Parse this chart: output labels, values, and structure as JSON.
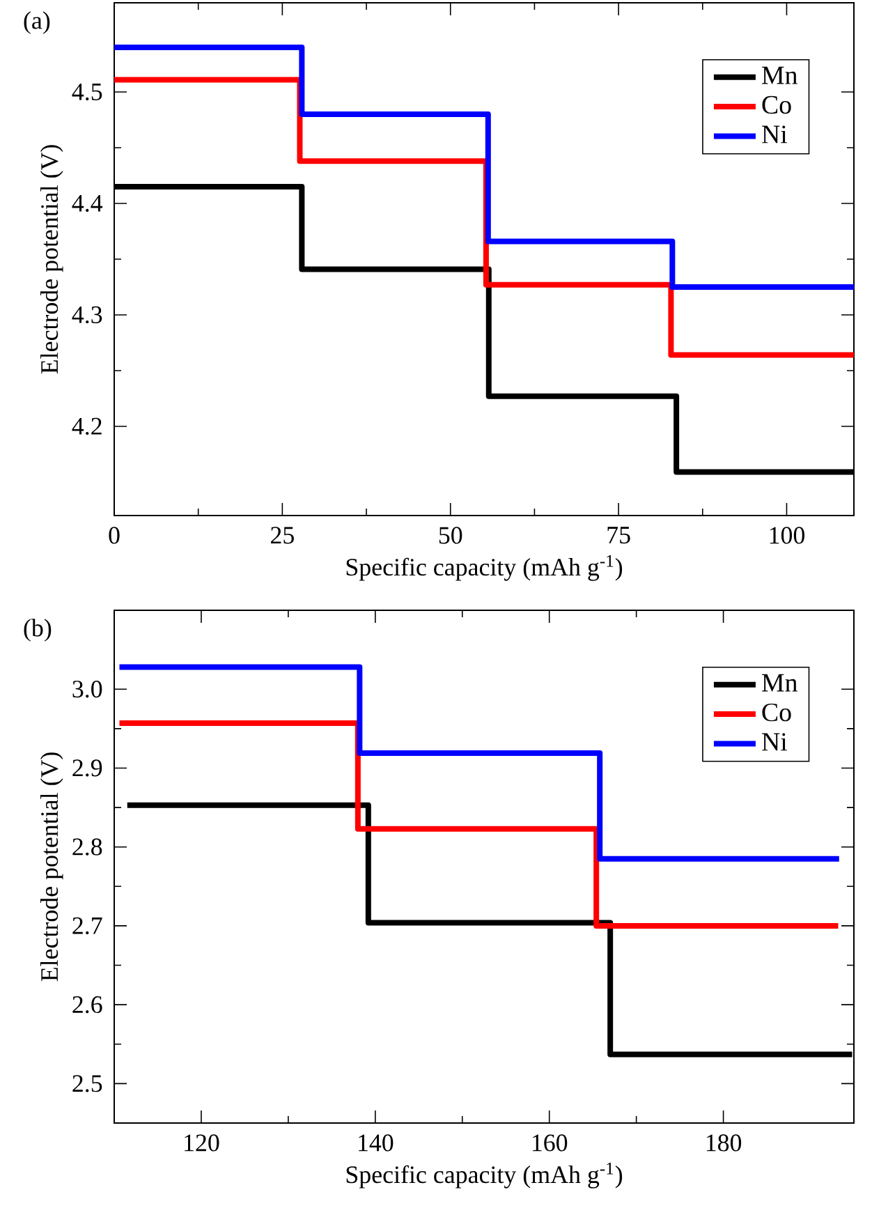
{
  "chart_data": [
    {
      "type": "step",
      "title": "(a)",
      "xlabel": "Specific capacity (mAh g$^{-1}$)",
      "ylabel": "Electrode potential (V)",
      "xlim": [
        0,
        110
      ],
      "ylim": [
        4.12,
        4.58
      ],
      "xticks": [
        0,
        25,
        50,
        75,
        100
      ],
      "yticks": [
        4.2,
        4.3,
        4.4,
        4.5
      ],
      "legend": "top right",
      "series": [
        {
          "name": "Mn",
          "color": "#000000",
          "x": [
            0,
            27.9,
            55.7,
            83.6,
            110
          ],
          "values": [
            4.415,
            4.341,
            4.227,
            4.159,
            4.159
          ]
        },
        {
          "name": "Co",
          "color": "#ff0000",
          "x": [
            0,
            27.6,
            55.3,
            82.8,
            110
          ],
          "values": [
            4.511,
            4.438,
            4.327,
            4.264,
            4.264
          ]
        },
        {
          "name": "Ni",
          "color": "#0000ff",
          "x": [
            0,
            27.9,
            55.6,
            83.0,
            110
          ],
          "values": [
            4.54,
            4.48,
            4.366,
            4.325,
            4.325
          ]
        }
      ]
    },
    {
      "type": "step",
      "title": "(b)",
      "xlabel": "Specific capacity (mAh g$^{-1}$)",
      "ylabel": "Electrode potential (V)",
      "xlim": [
        110,
        195
      ],
      "ylim": [
        2.45,
        3.1
      ],
      "xticks": [
        120,
        140,
        160,
        180
      ],
      "yticks": [
        2.5,
        2.6,
        2.7,
        2.8,
        2.9,
        {
          "value": 3,
          "label": "3.0"
        }
      ],
      "legend": "top right",
      "series": [
        {
          "name": "Mn",
          "color": "#000000",
          "x": [
            111.5,
            139.2,
            167.0,
            194.8
          ],
          "values": [
            2.853,
            2.704,
            2.537,
            2.537
          ]
        },
        {
          "name": "Co",
          "color": "#ff0000",
          "x": [
            110.6,
            138.0,
            165.4,
            193.2
          ],
          "values": [
            2.957,
            2.823,
            2.7,
            2.7
          ]
        },
        {
          "name": "Ni",
          "color": "#0000ff",
          "x": [
            110.6,
            138.2,
            165.8,
            193.3
          ],
          "values": [
            3.028,
            2.919,
            2.785,
            2.785
          ]
        }
      ]
    }
  ]
}
